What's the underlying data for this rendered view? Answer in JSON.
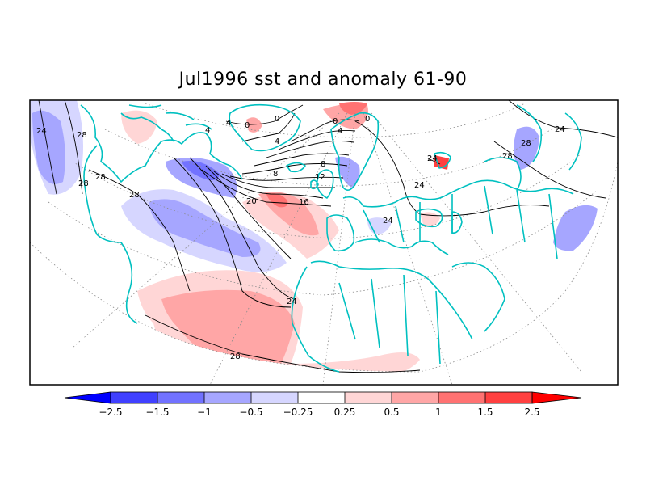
{
  "title": "Jul1996 sst and anomaly 61-90",
  "colorbar": {
    "ticks": [
      "−2.5",
      "−1.5",
      "−1",
      "−0.5",
      "−0.25",
      "0.25",
      "0.5",
      "1",
      "1.5",
      "2.5"
    ],
    "colors": [
      "#0000ff",
      "#4040ff",
      "#7272ff",
      "#a6a6ff",
      "#d6d6ff",
      "#ffffff",
      "#ffd6d6",
      "#ffa6a6",
      "#ff7272",
      "#ff4040",
      "#ff0000"
    ]
  },
  "contour_labels": [
    "24",
    "28",
    "28",
    "28",
    "0",
    "0",
    "4",
    "4",
    "8",
    "12",
    "16",
    "20",
    "24",
    "28",
    "24",
    "28",
    "24",
    "28",
    "4",
    "0",
    "0",
    "4",
    "8",
    "24",
    "24",
    "28"
  ],
  "colors": {
    "coast": "#00c0c0",
    "contour": "#000000",
    "grid": "#8c8c8c"
  }
}
